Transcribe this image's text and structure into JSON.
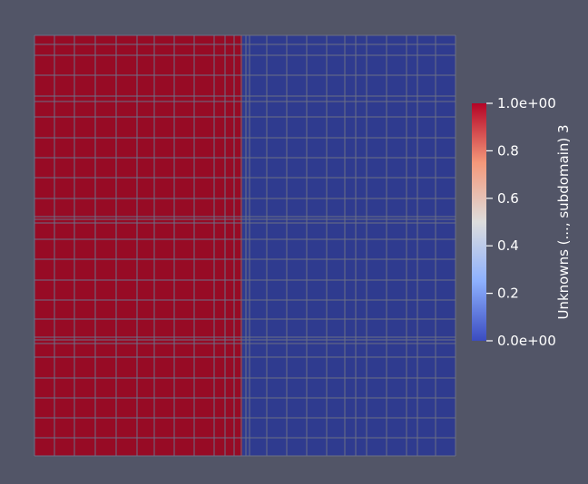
{
  "viewport": {
    "background": "#525567"
  },
  "mesh": {
    "subdomain_colors": {
      "value_1": "#b40426",
      "value_0": "#3b4cc0"
    },
    "cell_color_red": "#970b25",
    "cell_color_blue": "#2f3b8f",
    "grid_line_color": "#6b6f86",
    "columns": 20,
    "rows": 20,
    "red_fraction": 0.5
  },
  "color_bar": {
    "title": "Unknowns (..., subdomain) 3",
    "colormap": "cool-to-warm",
    "range": [
      0,
      1
    ],
    "ticks": [
      {
        "value": 1.0,
        "label": "1.0e+00"
      },
      {
        "value": 0.8,
        "label": "0.8"
      },
      {
        "value": 0.6,
        "label": "0.6"
      },
      {
        "value": 0.4,
        "label": "0.4"
      },
      {
        "value": 0.2,
        "label": "0.2"
      },
      {
        "value": 0.0,
        "label": "0.0e+00"
      }
    ]
  }
}
